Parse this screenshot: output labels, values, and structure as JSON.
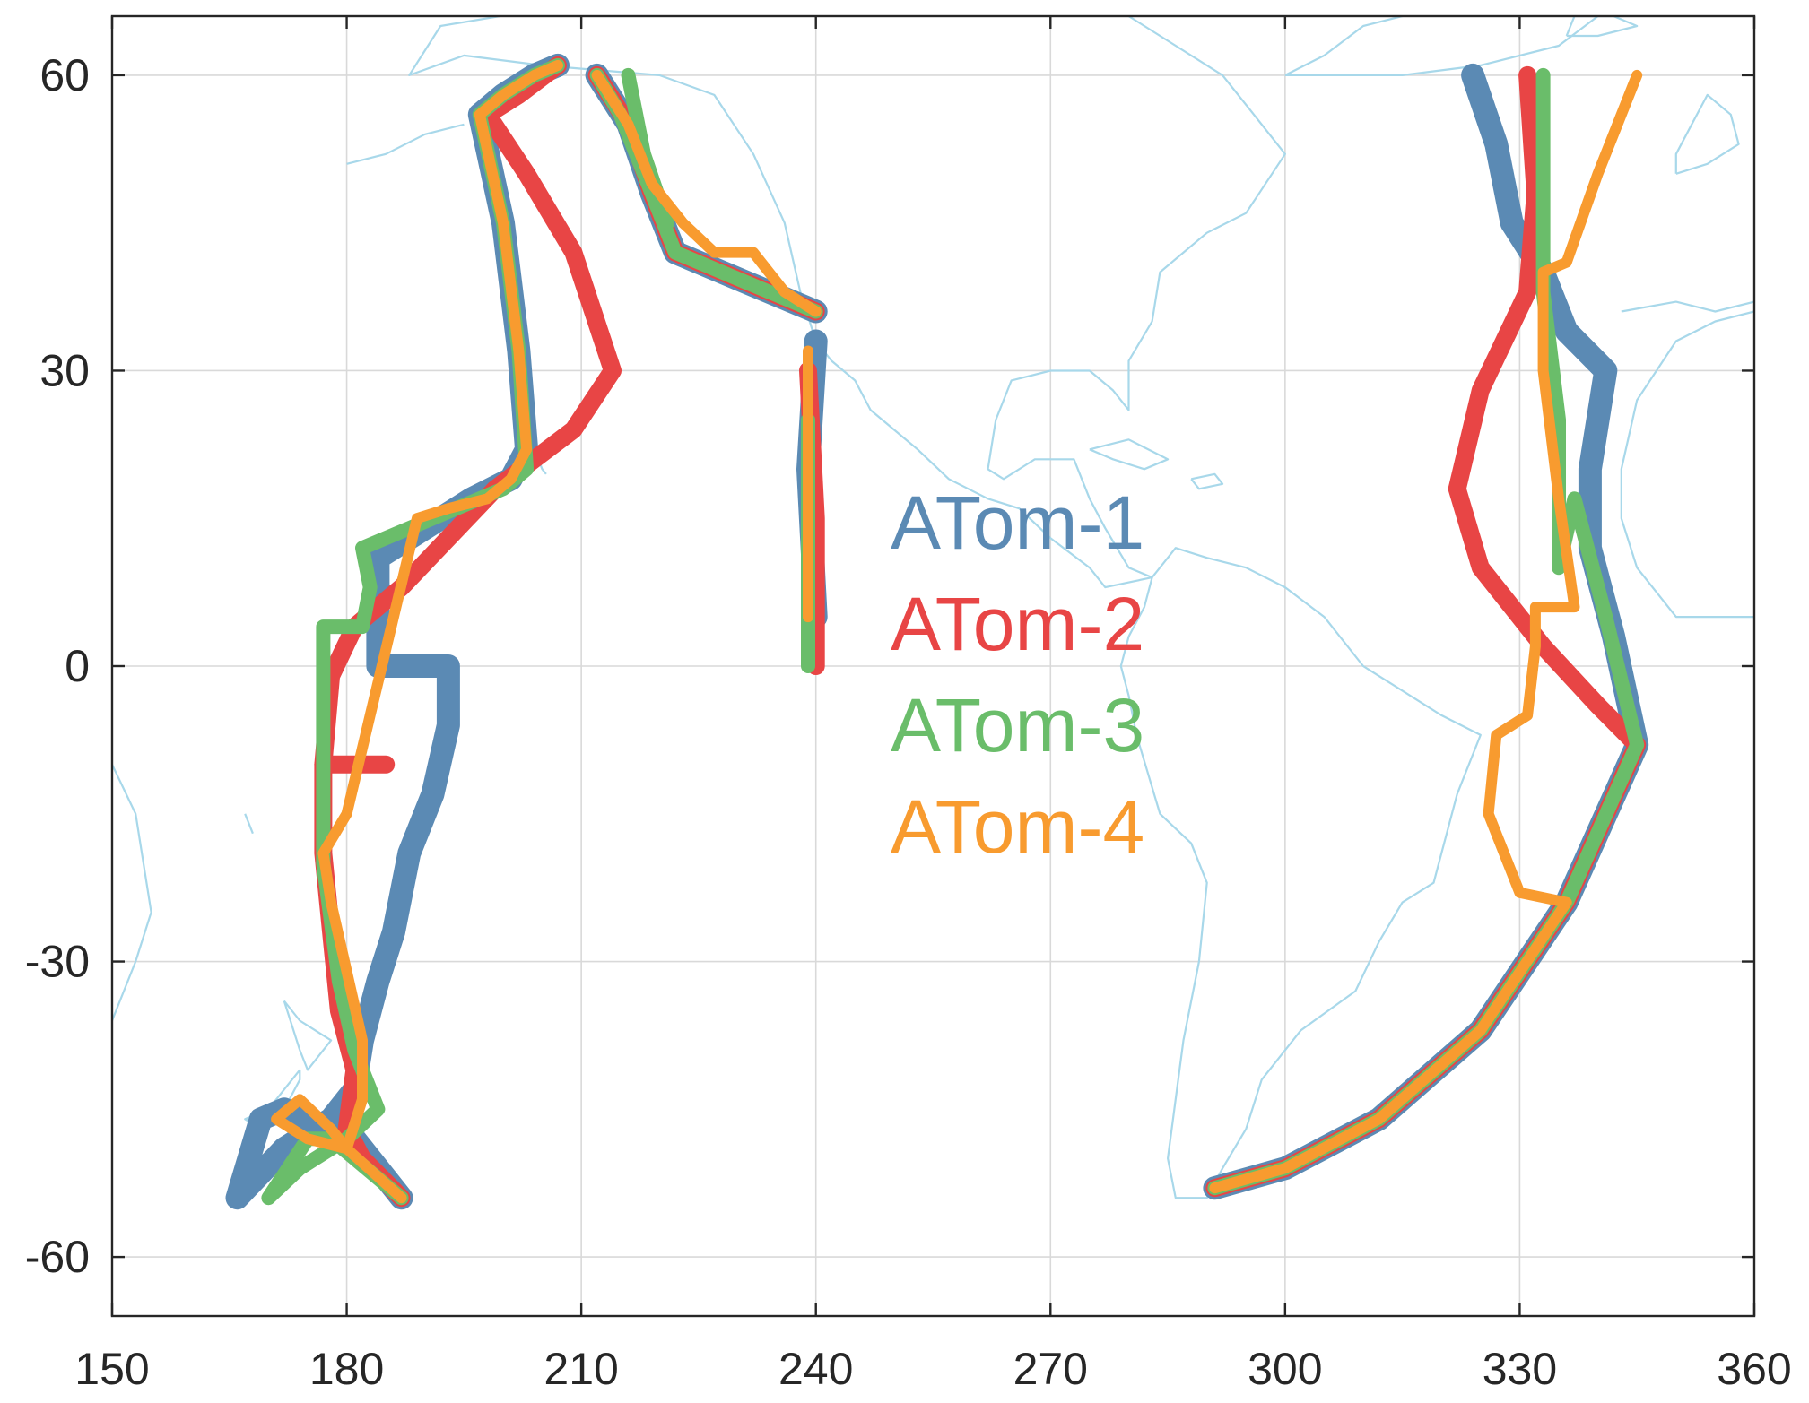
{
  "map": {
    "x_axis": {
      "range": [
        150,
        360
      ],
      "ticks": [
        150,
        180,
        210,
        240,
        270,
        300,
        330,
        360
      ]
    },
    "y_axis": {
      "range": [
        -66,
        66
      ],
      "ticks": [
        -60,
        -30,
        0,
        30,
        60
      ]
    },
    "grid": true,
    "coastline_color": "#a8d8ea",
    "legend_placement": "center",
    "missions": [
      {
        "name": "ATom-1",
        "color": "#5b8ab4",
        "tracks": [
          [
            [
              187,
              -54
            ],
            [
              181,
              -48
            ],
            [
              174,
              -46
            ],
            [
              172,
              -45
            ],
            [
              169,
              -46
            ],
            [
              166,
              -54
            ],
            [
              172,
              -49
            ],
            [
              178,
              -46
            ],
            [
              181,
              -43
            ],
            [
              182,
              -38
            ],
            [
              184,
              -32
            ],
            [
              186,
              -27
            ],
            [
              188,
              -19
            ],
            [
              191,
              -13
            ],
            [
              193,
              -6
            ],
            [
              193,
              0
            ],
            [
              184,
              0
            ],
            [
              184,
              11
            ],
            [
              190,
              14
            ],
            [
              196,
              17
            ],
            [
              201,
              19
            ],
            [
              203,
              22
            ],
            [
              202,
              32
            ],
            [
              200,
              45
            ],
            [
              197,
              56
            ],
            [
              200,
              58
            ],
            [
              204,
              60
            ],
            [
              207,
              61
            ]
          ],
          [
            [
              212,
              60
            ],
            [
              216,
              55
            ],
            [
              219,
              48
            ],
            [
              222,
              42
            ],
            [
              231,
              39
            ],
            [
              240,
              36
            ]
          ],
          [
            [
              240,
              33
            ],
            [
              239,
              20
            ],
            [
              240,
              5
            ]
          ],
          [
            [
              324,
              60
            ],
            [
              327,
              53
            ],
            [
              329,
              45
            ],
            [
              333,
              40
            ],
            [
              336,
              34
            ],
            [
              341,
              30
            ],
            [
              339,
              20
            ],
            [
              339,
              12
            ],
            [
              342,
              3
            ],
            [
              345,
              -8
            ],
            [
              336,
              -24
            ],
            [
              325,
              -37
            ],
            [
              312,
              -46
            ],
            [
              300,
              -51
            ],
            [
              291,
              -53
            ]
          ]
        ]
      },
      {
        "name": "ATom-2",
        "color": "#e84545",
        "tracks": [
          [
            [
              187,
              -54
            ],
            [
              182,
              -50
            ],
            [
              180,
              -47
            ],
            [
              181,
              -41
            ],
            [
              179,
              -35
            ],
            [
              178,
              -27
            ],
            [
              177,
              -19
            ],
            [
              177,
              -10
            ],
            [
              178,
              -1
            ],
            [
              181,
              4
            ],
            [
              187,
              8
            ],
            [
              193,
              13
            ],
            [
              199,
              18
            ],
            [
              204,
              21
            ],
            [
              209,
              24
            ],
            [
              214,
              30
            ],
            [
              209,
              42
            ],
            [
              203,
              50
            ],
            [
              198,
              56
            ],
            [
              202,
              58
            ],
            [
              207,
              61
            ]
          ],
          [
            [
              177,
              -10
            ],
            [
              185,
              -10
            ]
          ],
          [
            [
              212,
              60
            ],
            [
              216,
              55
            ],
            [
              219,
              48
            ],
            [
              222,
              42
            ],
            [
              231,
              39
            ],
            [
              240,
              36
            ]
          ],
          [
            [
              239,
              30
            ],
            [
              240,
              15
            ],
            [
              240,
              0
            ]
          ],
          [
            [
              331,
              60
            ],
            [
              332,
              48
            ],
            [
              331,
              38
            ],
            [
              325,
              28
            ],
            [
              322,
              18
            ],
            [
              325,
              10
            ],
            [
              333,
              2
            ],
            [
              340,
              -4
            ],
            [
              345,
              -8
            ],
            [
              336,
              -24
            ],
            [
              325,
              -37
            ],
            [
              312,
              -46
            ],
            [
              300,
              -51
            ],
            [
              291,
              -53
            ]
          ]
        ]
      },
      {
        "name": "ATom-3",
        "color": "#6abd6a",
        "tracks": [
          [
            [
              187,
              -54
            ],
            [
              178,
              -48
            ],
            [
              175,
              -48
            ],
            [
              170,
              -54
            ],
            [
              174,
              -51
            ],
            [
              180,
              -48
            ],
            [
              184,
              -45
            ],
            [
              181,
              -39
            ],
            [
              179,
              -32
            ],
            [
              177,
              -20
            ],
            [
              177,
              -9
            ],
            [
              177,
              -3
            ],
            [
              177,
              0
            ],
            [
              177,
              4
            ],
            [
              182,
              4
            ],
            [
              183,
              8
            ],
            [
              182,
              12
            ],
            [
              188,
              14
            ],
            [
              194,
              16
            ],
            [
              200,
              18
            ],
            [
              203,
              20
            ],
            [
              202,
              32
            ],
            [
              200,
              45
            ],
            [
              197,
              56
            ],
            [
              200,
              58
            ],
            [
              204,
              60
            ],
            [
              207,
              61
            ]
          ],
          [
            [
              212,
              60
            ],
            [
              215,
              56
            ],
            [
              219,
              48
            ],
            [
              222,
              42
            ],
            [
              231,
              39
            ],
            [
              240,
              36
            ]
          ],
          [
            [
              216,
              60
            ],
            [
              218,
              52
            ],
            [
              221,
              45
            ]
          ],
          [
            [
              239,
              25
            ],
            [
              239,
              12
            ],
            [
              239,
              0
            ]
          ],
          [
            [
              333,
              60
            ],
            [
              333,
              48
            ],
            [
              333,
              38
            ],
            [
              335,
              25
            ],
            [
              335,
              10
            ],
            [
              337,
              17
            ],
            [
              341,
              5
            ],
            [
              345,
              -8
            ],
            [
              336,
              -24
            ],
            [
              325,
              -37
            ],
            [
              312,
              -46
            ],
            [
              300,
              -51
            ],
            [
              291,
              -53
            ]
          ]
        ]
      },
      {
        "name": "ATom-4",
        "color": "#f89b2f",
        "tracks": [
          [
            [
              187,
              -54
            ],
            [
              180,
              -49
            ],
            [
              178,
              -47
            ],
            [
              174,
              -44
            ],
            [
              171,
              -46
            ],
            [
              175,
              -48
            ],
            [
              180,
              -49
            ],
            [
              182,
              -44
            ],
            [
              182,
              -38
            ],
            [
              180,
              -31
            ],
            [
              178,
              -24
            ],
            [
              177,
              -19
            ],
            [
              180,
              -15
            ],
            [
              183,
              -5
            ],
            [
              186,
              5
            ],
            [
              189,
              15
            ],
            [
              193,
              16
            ],
            [
              198,
              17
            ],
            [
              201,
              19
            ],
            [
              203,
              22
            ],
            [
              202,
              32
            ],
            [
              200,
              45
            ],
            [
              197,
              56
            ],
            [
              200,
              58
            ],
            [
              204,
              60
            ],
            [
              207,
              61
            ]
          ],
          [
            [
              212,
              60
            ],
            [
              216,
              55
            ],
            [
              219,
              49
            ],
            [
              223,
              45
            ],
            [
              227,
              42
            ],
            [
              232,
              42
            ],
            [
              236,
              38
            ],
            [
              240,
              36
            ]
          ],
          [
            [
              239,
              32
            ],
            [
              239,
              20
            ],
            [
              239,
              5
            ]
          ],
          [
            [
              345,
              60
            ],
            [
              340,
              50
            ],
            [
              336,
              41
            ],
            [
              333,
              40
            ],
            [
              333,
              30
            ],
            [
              335,
              17
            ],
            [
              337,
              6
            ],
            [
              332,
              6
            ],
            [
              332,
              2
            ],
            [
              331,
              -5
            ],
            [
              327,
              -7
            ],
            [
              326,
              -15
            ],
            [
              330,
              -23
            ],
            [
              336,
              -24
            ],
            [
              325,
              -37
            ],
            [
              312,
              -46
            ],
            [
              300,
              -51
            ],
            [
              291,
              -53
            ]
          ]
        ]
      }
    ]
  }
}
